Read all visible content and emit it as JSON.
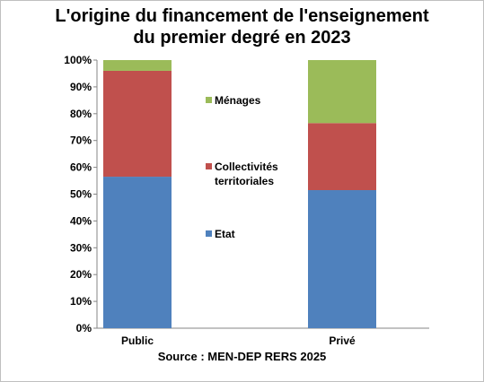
{
  "chart_data": {
    "type": "bar",
    "stacked": true,
    "title_lines": [
      "L'origine du financement  de l'enseignement",
      "du premier degré en 2023"
    ],
    "categories": [
      "Public",
      "Privé"
    ],
    "series": [
      {
        "name": "Etat",
        "color": "#4F81BD",
        "values": [
          56.5,
          51.5
        ]
      },
      {
        "name": "Collectivités territoriales",
        "color": "#C0504D",
        "values": [
          39.5,
          25.0
        ]
      },
      {
        "name": "Ménages",
        "color": "#9BBB59",
        "values": [
          4.0,
          23.5
        ]
      }
    ],
    "legend": [
      {
        "name": "Ménages",
        "color": "#9BBB59"
      },
      {
        "name_lines": [
          "Collectivités",
          "territoriales"
        ],
        "color": "#C0504D"
      },
      {
        "name": "Etat",
        "color": "#4F81BD"
      }
    ],
    "y_ticks": [
      "0%",
      "10%",
      "20%",
      "30%",
      "40%",
      "50%",
      "60%",
      "70%",
      "80%",
      "90%",
      "100%"
    ],
    "ylim": [
      0,
      100
    ],
    "legend_position": "center",
    "grid": false
  },
  "source": "Source : MEN-DEP RERS 2025"
}
